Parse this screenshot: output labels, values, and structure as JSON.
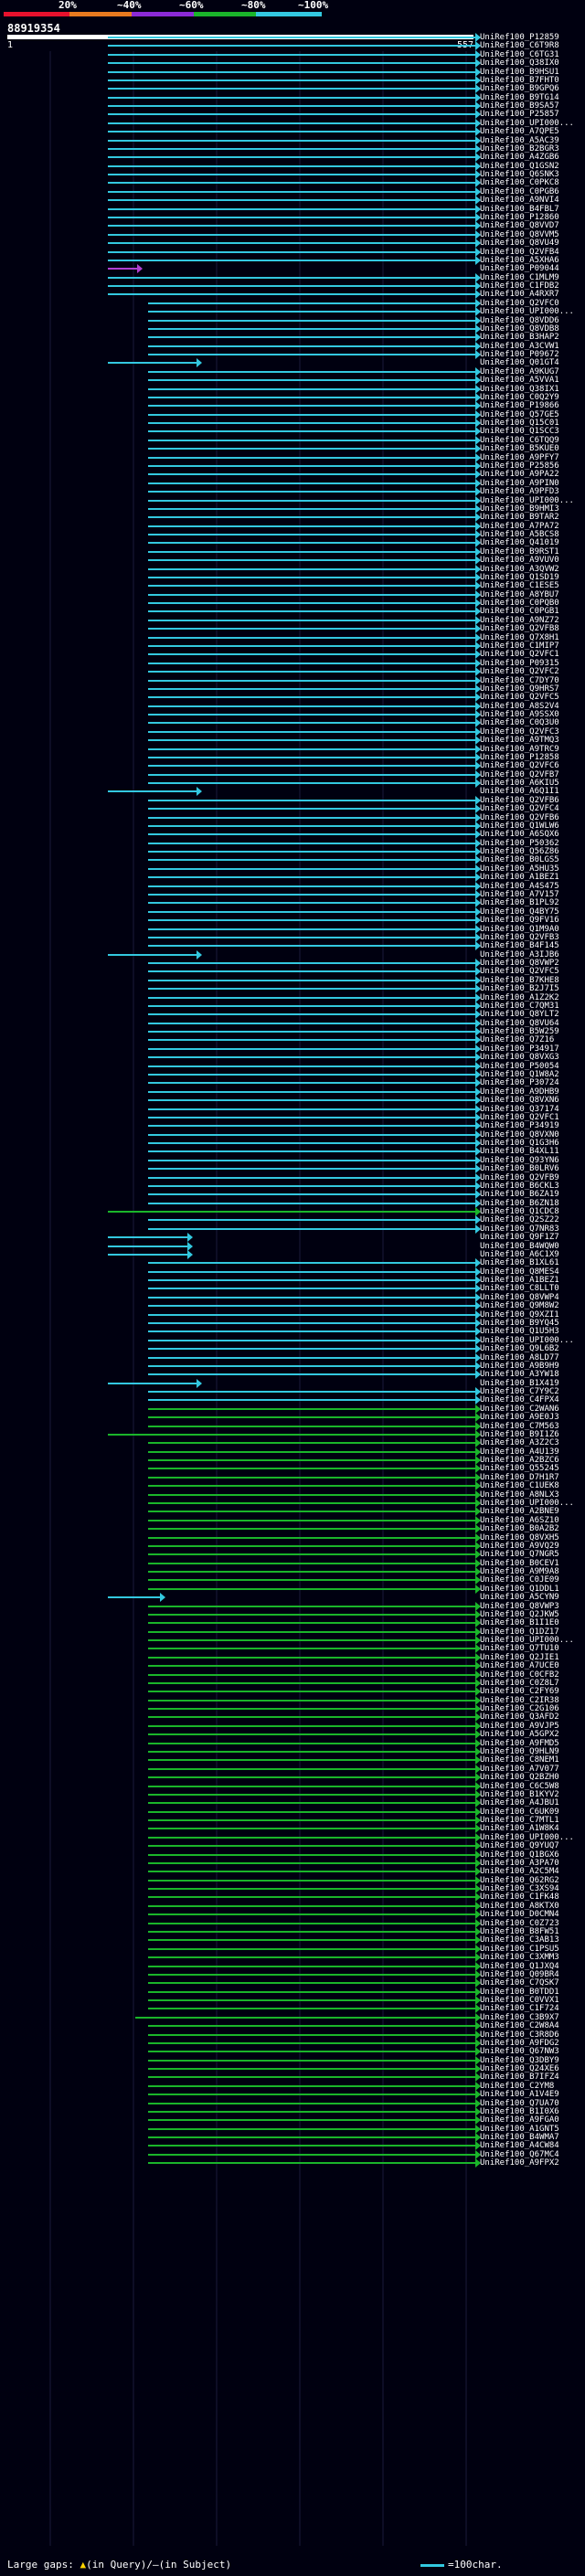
{
  "legend": {
    "ticks": [
      "20%",
      "~40%",
      "~60%",
      "~80%",
      "~100%"
    ],
    "colors": [
      "#e8112d",
      "#e87a1f",
      "#8c2ad6",
      "#1ab52a",
      "#33c8e0"
    ]
  },
  "query": {
    "id": "88919354",
    "start": "1",
    "end": "557"
  },
  "row_labels": [
    "UniRef100_P12859",
    "UniRef100_C6T9R8",
    "UniRef100_C6TG31",
    "UniRef100_Q38IX0",
    "UniRef100_B9HSU1",
    "UniRef100_B7FHT0",
    "UniRef100_B9GPQ6",
    "UniRef100_B9TG14",
    "UniRef100_B9SA57",
    "UniRef100_P25857",
    "UniRef100_UPI000...",
    "UniRef100_A7QPE5",
    "UniRef100_A5AC39",
    "UniRef100_B2BGR3",
    "UniRef100_A4ZGB6",
    "UniRef100_Q1GSN2",
    "UniRef100_Q6SNK3",
    "UniRef100_C0PKC8",
    "UniRef100_C0PGB6",
    "UniRef100_A9NVI4",
    "UniRef100_B4FBL7",
    "UniRef100_P12860",
    "UniRef100_Q8VVD7",
    "UniRef100_Q8VVM5",
    "UniRef100_Q8VU49",
    "UniRef100_Q2VFB4",
    "UniRef100_A5XHA6",
    "UniRef100_P09044",
    "UniRef100_C1MLM9",
    "UniRef100_C1FDB2",
    "UniRef100_A4RXR7",
    "UniRef100_Q2VFC0",
    "UniRef100_UPI000...",
    "UniRef100_Q8VDD6",
    "UniRef100_Q8VDB8",
    "UniRef100_B3HAP2",
    "UniRef100_A3CVW1",
    "UniRef100_P09672",
    "UniRef100_Q01GT4",
    "UniRef100_A9KUG7",
    "UniRef100_A5VVA1",
    "UniRef100_Q38IX1",
    "UniRef100_C0Q2Y9",
    "UniRef100_P19866",
    "UniRef100_Q57GE5",
    "UniRef100_Q15C01",
    "UniRef100_Q1SCC3",
    "UniRef100_C6TQQ9",
    "UniRef100_B5KUE0",
    "UniRef100_A9PFY7",
    "UniRef100_P25856",
    "UniRef100_A9PA22",
    "UniRef100_A9PIN0",
    "UniRef100_A9PFD3",
    "UniRef100_UPI000...",
    "UniRef100_B9HMI3",
    "UniRef100_B9TAR2",
    "UniRef100_A7PA72",
    "UniRef100_A5BCS8",
    "UniRef100_Q41019",
    "UniRef100_B9RST1",
    "UniRef100_A9VUV0",
    "UniRef100_A3QVW2",
    "UniRef100_Q1SD19",
    "UniRef100_C1ESE5",
    "UniRef100_A8YBU7",
    "UniRef100_C0PQB0",
    "UniRef100_C0PGB1",
    "UniRef100_A9NZ72",
    "UniRef100_Q2VFB8",
    "UniRef100_Q7X8H1",
    "UniRef100_C1MIP7",
    "UniRef100_Q2VFC1",
    "UniRef100_P09315",
    "UniRef100_Q2VFC2",
    "UniRef100_C7DY70",
    "UniRef100_Q9HRS7",
    "UniRef100_Q2VFC5",
    "UniRef100_A8S2V4",
    "UniRef100_A9SSX0",
    "UniRef100_C0Q3U0",
    "UniRef100_Q2VFC3",
    "UniRef100_A9TMQ3",
    "UniRef100_A9TRC9",
    "UniRef100_P12858",
    "UniRef100_Q2VFC6",
    "UniRef100_Q2VFB7",
    "UniRef100_A6KIU5",
    "UniRef100_A6Q1I1",
    "UniRef100_Q2VFB6",
    "UniRef100_Q2VFC4",
    "UniRef100_Q2VFB6",
    "UniRef100_Q1WLW6",
    "UniRef100_A6SQX6",
    "UniRef100_P50362",
    "UniRef100_Q56Z86",
    "UniRef100_B0LGS5",
    "UniRef100_A5HU35",
    "UniRef100_A1BEZ1",
    "UniRef100_A4S475",
    "UniRef100_A7V157",
    "UniRef100_B1PL92",
    "UniRef100_Q4BY75",
    "UniRef100_Q9FV16",
    "UniRef100_Q1M9A0",
    "UniRef100_Q2VFB3",
    "UniRef100_B4F145",
    "UniRef100_A3IJB6",
    "UniRef100_Q8VWP2",
    "UniRef100_Q2VFC5",
    "UniRef100_B7KHE8",
    "UniRef100_B2J7I5",
    "UniRef100_A1Z2K2",
    "UniRef100_C7QM31",
    "UniRef100_Q8YLT2",
    "UniRef100_Q8VU64",
    "UniRef100_B5W259",
    "UniRef100_Q7Z16",
    "UniRef100_P34917",
    "UniRef100_Q8VXG3",
    "UniRef100_P50054",
    "UniRef100_Q1W8A2",
    "UniRef100_P30724",
    "UniRef100_A9DHB9",
    "UniRef100_Q8VXN6",
    "UniRef100_Q37174",
    "UniRef100_Q2VFC1",
    "UniRef100_P34919",
    "UniRef100_Q8VXN0",
    "UniRef100_Q1G3H6",
    "UniRef100_B4XL11",
    "UniRef100_Q93YN6",
    "UniRef100_B0LRV6",
    "UniRef100_Q2VFB9",
    "UniRef100_B6CKL3",
    "UniRef100_B6ZA19",
    "UniRef100_B6ZN18",
    "UniRef100_Q1CDC8",
    "UniRef100_Q2SZ22",
    "UniRef100_Q7NR83",
    "UniRef100_Q9F1Z7",
    "UniRef100_B4WQW0",
    "UniRef100_A6C1X9",
    "UniRef100_B1XL61",
    "UniRef100_Q8MES4",
    "UniRef100_A1BEZ1",
    "UniRef100_C8LLT0",
    "UniRef100_Q8VWP4",
    "UniRef100_Q9M8W2",
    "UniRef100_Q9XZI1",
    "UniRef100_B9YQ45",
    "UniRef100_Q1U5H3",
    "UniRef100_UPI000...",
    "UniRef100_Q9L6B2",
    "UniRef100_A8LD77",
    "UniRef100_A9B9H9",
    "UniRef100_A3YW18",
    "UniRef100_B1X419",
    "UniRef100_C7Y9C2",
    "UniRef100_C4FPX4",
    "UniRef100_C2WAN6",
    "UniRef100_A9E0J3",
    "UniRef100_C7M563",
    "UniRef100_B9I1Z6",
    "UniRef100_A3Z2C3",
    "UniRef100_A4U139",
    "UniRef100_A2BZC6",
    "UniRef100_Q55245",
    "UniRef100_D7H1R7",
    "UniRef100_C1UEK8",
    "UniRef100_A8NLX3",
    "UniRef100_UPI000...",
    "UniRef100_A2BNE9",
    "UniRef100_A6SZ10",
    "UniRef100_B0A2B2",
    "UniRef100_Q8VXH5",
    "UniRef100_A9VQ29",
    "UniRef100_Q7NGR5",
    "UniRef100_B0CEV1",
    "UniRef100_A9M9A8",
    "UniRef100_C0JE09",
    "UniRef100_Q1DDL1",
    "UniRef100_A5CYN9",
    "UniRef100_Q8VWP3",
    "UniRef100_Q2JKW5",
    "UniRef100_B1I1E0",
    "UniRef100_Q1DZ17",
    "UniRef100_UPI000...",
    "UniRef100_Q7TU10",
    "UniRef100_Q2JIE1",
    "UniRef100_A7UCE0",
    "UniRef100_C0CFB2",
    "UniRef100_C0Z8L7",
    "UniRef100_C2FY69",
    "UniRef100_C2IR38",
    "UniRef100_C2G106",
    "UniRef100_Q3AFD2",
    "UniRef100_A9VJP5",
    "UniRef100_A5GPX2",
    "UniRef100_A9FMD5",
    "UniRef100_Q9HLN9",
    "UniRef100_C8NEM1",
    "UniRef100_A7V077",
    "UniRef100_Q2BZH0",
    "UniRef100_C6C5W8",
    "UniRef100_B1KYV2",
    "UniRef100_A4JBU1",
    "UniRef100_C6UK09",
    "UniRef100_C7MTL1",
    "UniRef100_A1W8K4",
    "UniRef100_UPI000...",
    "UniRef100_Q9YUQ7",
    "UniRef100_Q1BGX6",
    "UniRef100_A3PA70",
    "UniRef100_A2C5M4",
    "UniRef100_Q62RG2",
    "UniRef100_C3XS94",
    "UniRef100_C1FK48",
    "UniRef100_A8KTX0",
    "UniRef100_D0CMN4",
    "UniRef100_C0Z723",
    "UniRef100_B8FW51",
    "UniRef100_C3AB13",
    "UniRef100_C1PSU5",
    "UniRef100_C3XMM3",
    "UniRef100_Q1JXQ4",
    "UniRef100_Q09BR4",
    "UniRef100_C7QSK7",
    "UniRef100_B0TDD1",
    "UniRef100_C0VVX1",
    "UniRef100_C1F724",
    "UniRef100_C3B9X7",
    "UniRef100_C2W8A4",
    "UniRef100_C3R8D6",
    "UniRef100_A9FDG2",
    "UniRef100_Q67NW3",
    "UniRef100_Q3DBY9",
    "UniRef100_Q24XE6",
    "UniRef100_B7IFZ4",
    "UniRef100_C2YM8",
    "UniRef100_A1V4E9",
    "UniRef100_Q7UA70",
    "UniRef100_B1I0X6",
    "UniRef100_A9FGA0",
    "UniRef100_A1GNT5",
    "UniRef100_B4WMA7",
    "UniRef100_A4CW84",
    "UniRef100_Q67MC4",
    "UniRef100_A9FPX2"
  ],
  "footer": {
    "gaps_label": "Large gaps:",
    "query_gap_marker": "▲",
    "query_gap_text": "(in Query)/",
    "subject_gap_marker": "—",
    "subject_gap_text": "(in Subject)",
    "scale_text": "=100char."
  }
}
